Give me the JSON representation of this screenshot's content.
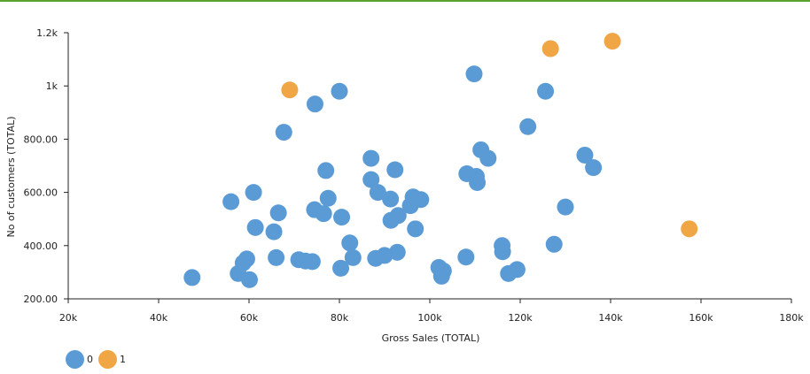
{
  "chart_data": {
    "type": "scatter",
    "title": "",
    "xlabel": "Gross Sales (TOTAL)",
    "ylabel": "No of customers (TOTAL)",
    "xlim": [
      20000,
      180000
    ],
    "ylim": [
      200,
      1200
    ],
    "x_ticks": [
      {
        "value": 20000,
        "label": "20k"
      },
      {
        "value": 40000,
        "label": "40k"
      },
      {
        "value": 60000,
        "label": "60k"
      },
      {
        "value": 80000,
        "label": "80k"
      },
      {
        "value": 100000,
        "label": "100k"
      },
      {
        "value": 120000,
        "label": "120k"
      },
      {
        "value": 140000,
        "label": "140k"
      },
      {
        "value": 160000,
        "label": "160k"
      },
      {
        "value": 180000,
        "label": "180k"
      }
    ],
    "y_ticks": [
      {
        "value": 200,
        "label": "200.00"
      },
      {
        "value": 400,
        "label": "400.00"
      },
      {
        "value": 600,
        "label": "600.00"
      },
      {
        "value": 800,
        "label": "800.00"
      },
      {
        "value": 1000,
        "label": "1k"
      },
      {
        "value": 1200,
        "label": "1.2k"
      }
    ],
    "grid": false,
    "legend_position": "bottom-left",
    "series": [
      {
        "name": "0",
        "color": "#5b9bd5",
        "points": [
          [
            47400,
            280
          ],
          [
            56000,
            565
          ],
          [
            57600,
            295
          ],
          [
            58700,
            335
          ],
          [
            59500,
            350
          ],
          [
            60100,
            272
          ],
          [
            61000,
            600
          ],
          [
            61400,
            468
          ],
          [
            65500,
            452
          ],
          [
            66000,
            355
          ],
          [
            66500,
            523
          ],
          [
            67700,
            826
          ],
          [
            71000,
            347
          ],
          [
            72500,
            342
          ],
          [
            74000,
            340
          ],
          [
            74500,
            535
          ],
          [
            74600,
            932
          ],
          [
            76500,
            520
          ],
          [
            77000,
            682
          ],
          [
            77500,
            578
          ],
          [
            80000,
            980
          ],
          [
            80300,
            315
          ],
          [
            80500,
            507
          ],
          [
            82300,
            410
          ],
          [
            83000,
            355
          ],
          [
            87000,
            728
          ],
          [
            87000,
            648
          ],
          [
            88000,
            352
          ],
          [
            88500,
            600
          ],
          [
            90000,
            363
          ],
          [
            91300,
            575
          ],
          [
            91400,
            495
          ],
          [
            92300,
            685
          ],
          [
            92800,
            375
          ],
          [
            93000,
            513
          ],
          [
            95700,
            550
          ],
          [
            96300,
            583
          ],
          [
            96800,
            463
          ],
          [
            98000,
            573
          ],
          [
            102000,
            318
          ],
          [
            102600,
            285
          ],
          [
            103000,
            305
          ],
          [
            108000,
            357
          ],
          [
            108200,
            670
          ],
          [
            109800,
            1045
          ],
          [
            110300,
            660
          ],
          [
            110500,
            637
          ],
          [
            111300,
            760
          ],
          [
            112900,
            728
          ],
          [
            116000,
            400
          ],
          [
            116100,
            377
          ],
          [
            117400,
            295
          ],
          [
            119300,
            310
          ],
          [
            121700,
            847
          ],
          [
            125600,
            980
          ],
          [
            127500,
            405
          ],
          [
            130000,
            545
          ],
          [
            134300,
            740
          ],
          [
            136200,
            693
          ]
        ]
      },
      {
        "name": "1",
        "color": "#f0a644",
        "points": [
          [
            69000,
            985
          ],
          [
            126700,
            1140
          ],
          [
            140400,
            1168
          ],
          [
            157400,
            463
          ]
        ]
      }
    ]
  }
}
